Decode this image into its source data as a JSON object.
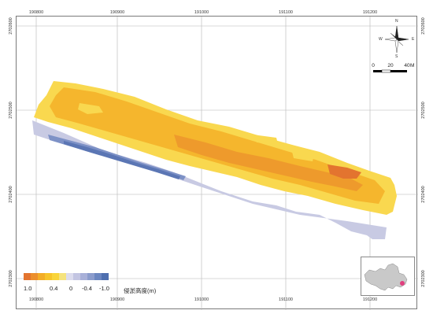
{
  "map": {
    "x_ticks": [
      "190800",
      "190900",
      "191000",
      "191100",
      "191200"
    ],
    "y_ticks": [
      "2702500",
      "2702400",
      "2702300"
    ],
    "y_ticks_top": "2702600"
  },
  "north_arrow": {
    "n": "N",
    "s": "S",
    "e": "E",
    "w": "W"
  },
  "scale_bar": {
    "labels": [
      "0",
      "20",
      "40"
    ],
    "unit": "M"
  },
  "legend": {
    "title": "侵淤高度(m)",
    "labels": [
      "1.0",
      "0.4",
      "0",
      "-0.4",
      "-1.0"
    ],
    "colors": [
      "#e3742f",
      "#ec8f2c",
      "#f3ad26",
      "#f7c42a",
      "#f9d43a",
      "#f5e37e",
      "#dcdcee",
      "#c3c5e2",
      "#a8b0d8",
      "#8b9ccc",
      "#6b86c0",
      "#4f6faf"
    ]
  },
  "colors": {
    "accretion_high": "#e88a2a",
    "accretion_mid": "#f5b62d",
    "accretion_low": "#f9d84f",
    "erosion_low": "#c3c5e2",
    "erosion_high": "#5b76b4",
    "inset_marker": "#e0407f"
  }
}
